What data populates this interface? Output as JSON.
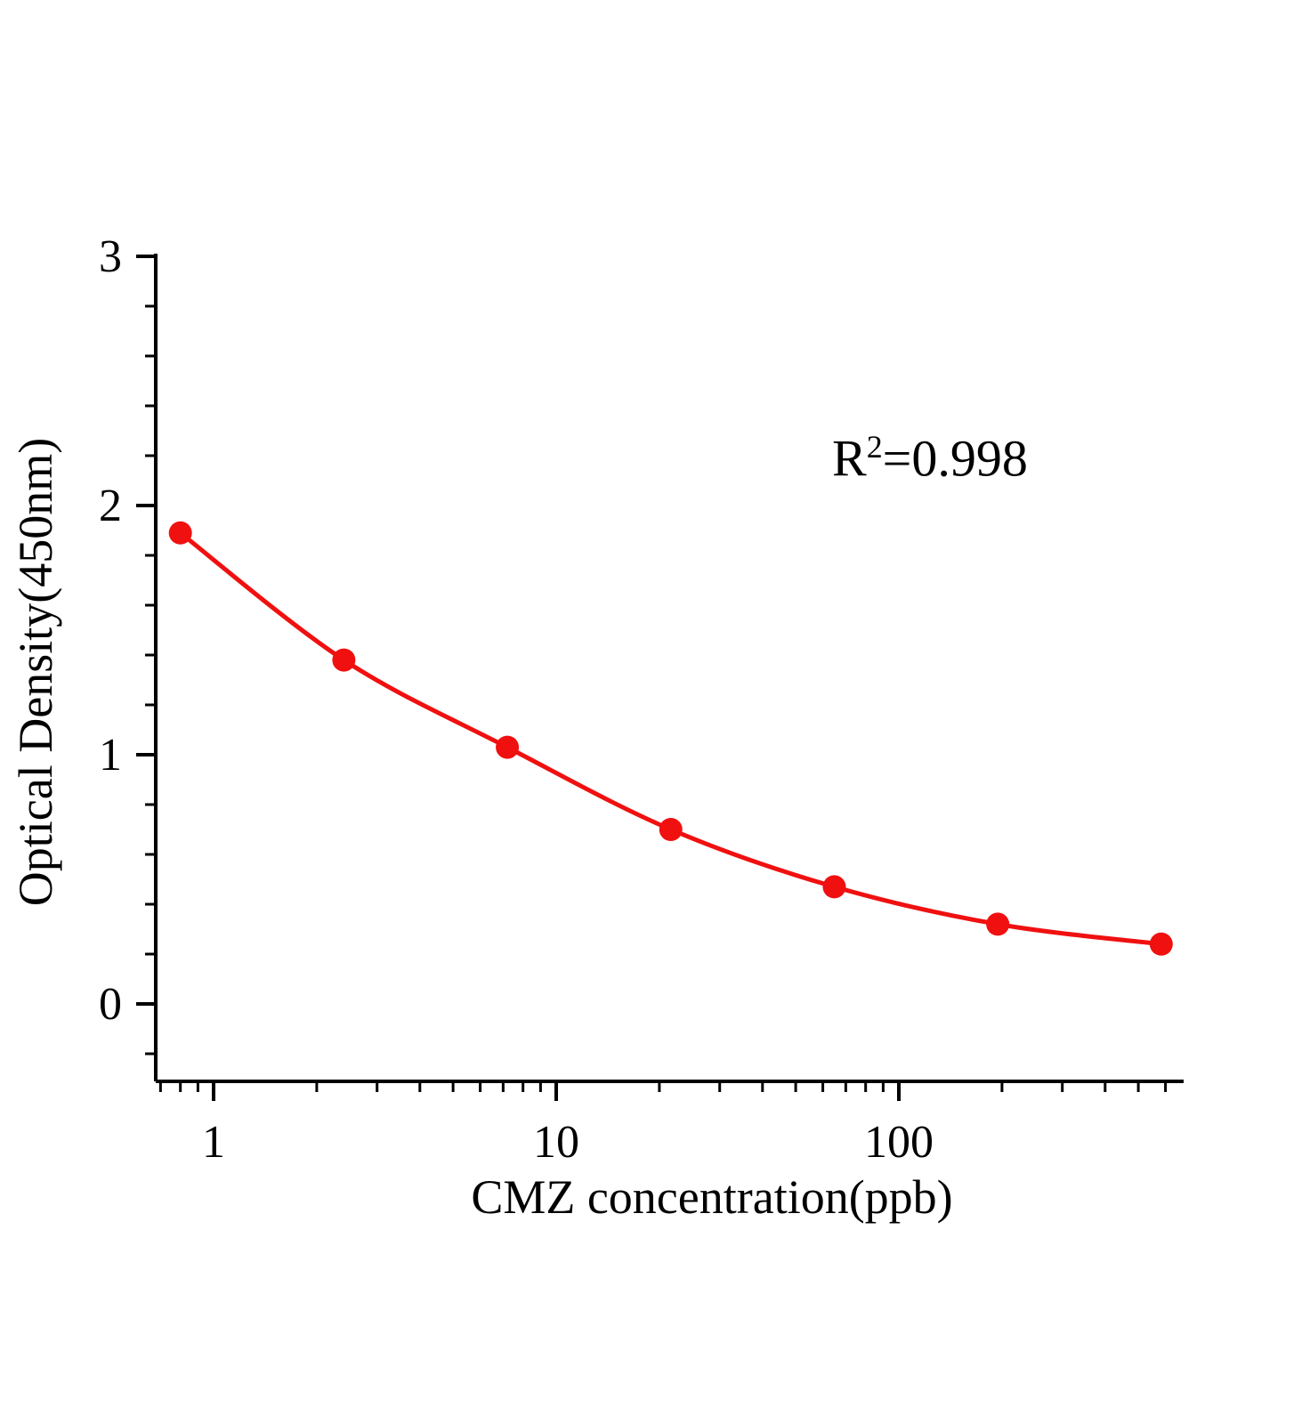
{
  "colors": {
    "curve": "#f01010",
    "axis": "#000000",
    "background": "#ffffff"
  },
  "annotation": {
    "base": "R",
    "sup": "2",
    "rest": "=0.998"
  },
  "chart_data": {
    "type": "scatter",
    "x": [
      0.8,
      2.4,
      7.2,
      21.6,
      64.8,
      194.4,
      583.2
    ],
    "y": [
      1.89,
      1.38,
      1.03,
      0.7,
      0.47,
      0.32,
      0.24
    ],
    "title": "",
    "xlabel": "CMZ concentration(ppb)",
    "ylabel": "Optical Density(450nm)",
    "annotation": "R²=0.998",
    "x_scale": "log",
    "xlim": [
      0.65,
      690
    ],
    "ylim": [
      -0.31,
      3.0
    ],
    "x_ticks": [
      1,
      10,
      100
    ],
    "y_ticks": [
      0,
      1,
      2,
      3
    ],
    "y_minor_step": 0.2,
    "grid": false,
    "legend": "none",
    "fit": "smooth decreasing standard-curve through points"
  }
}
